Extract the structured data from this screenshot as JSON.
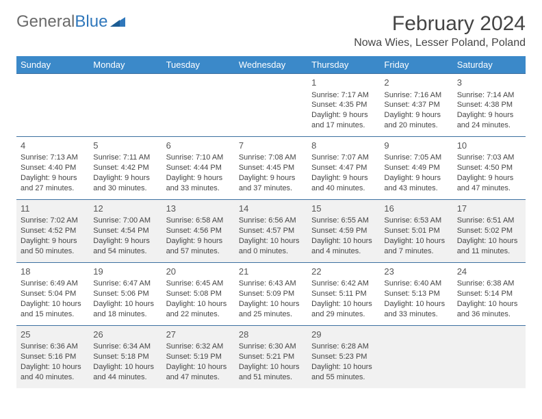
{
  "brand": {
    "part1": "General",
    "part2": "Blue"
  },
  "title": "February 2024",
  "location": "Nowa Wies, Lesser Poland, Poland",
  "colors": {
    "header_bg": "#3b89c9",
    "header_text": "#ffffff",
    "row_alt_bg": "#f1f1f1",
    "row_bg": "#ffffff",
    "border": "#3b6fa0",
    "text": "#444444",
    "logo_gray": "#6a6a6a",
    "logo_blue": "#2f77bb"
  },
  "day_headers": [
    "Sunday",
    "Monday",
    "Tuesday",
    "Wednesday",
    "Thursday",
    "Friday",
    "Saturday"
  ],
  "weeks": [
    [
      null,
      null,
      null,
      null,
      {
        "n": "1",
        "sr": "Sunrise: 7:17 AM",
        "ss": "Sunset: 4:35 PM",
        "dl": "Daylight: 9 hours and 17 minutes."
      },
      {
        "n": "2",
        "sr": "Sunrise: 7:16 AM",
        "ss": "Sunset: 4:37 PM",
        "dl": "Daylight: 9 hours and 20 minutes."
      },
      {
        "n": "3",
        "sr": "Sunrise: 7:14 AM",
        "ss": "Sunset: 4:38 PM",
        "dl": "Daylight: 9 hours and 24 minutes."
      }
    ],
    [
      {
        "n": "4",
        "sr": "Sunrise: 7:13 AM",
        "ss": "Sunset: 4:40 PM",
        "dl": "Daylight: 9 hours and 27 minutes."
      },
      {
        "n": "5",
        "sr": "Sunrise: 7:11 AM",
        "ss": "Sunset: 4:42 PM",
        "dl": "Daylight: 9 hours and 30 minutes."
      },
      {
        "n": "6",
        "sr": "Sunrise: 7:10 AM",
        "ss": "Sunset: 4:44 PM",
        "dl": "Daylight: 9 hours and 33 minutes."
      },
      {
        "n": "7",
        "sr": "Sunrise: 7:08 AM",
        "ss": "Sunset: 4:45 PM",
        "dl": "Daylight: 9 hours and 37 minutes."
      },
      {
        "n": "8",
        "sr": "Sunrise: 7:07 AM",
        "ss": "Sunset: 4:47 PM",
        "dl": "Daylight: 9 hours and 40 minutes."
      },
      {
        "n": "9",
        "sr": "Sunrise: 7:05 AM",
        "ss": "Sunset: 4:49 PM",
        "dl": "Daylight: 9 hours and 43 minutes."
      },
      {
        "n": "10",
        "sr": "Sunrise: 7:03 AM",
        "ss": "Sunset: 4:50 PM",
        "dl": "Daylight: 9 hours and 47 minutes."
      }
    ],
    [
      {
        "n": "11",
        "sr": "Sunrise: 7:02 AM",
        "ss": "Sunset: 4:52 PM",
        "dl": "Daylight: 9 hours and 50 minutes."
      },
      {
        "n": "12",
        "sr": "Sunrise: 7:00 AM",
        "ss": "Sunset: 4:54 PM",
        "dl": "Daylight: 9 hours and 54 minutes."
      },
      {
        "n": "13",
        "sr": "Sunrise: 6:58 AM",
        "ss": "Sunset: 4:56 PM",
        "dl": "Daylight: 9 hours and 57 minutes."
      },
      {
        "n": "14",
        "sr": "Sunrise: 6:56 AM",
        "ss": "Sunset: 4:57 PM",
        "dl": "Daylight: 10 hours and 0 minutes."
      },
      {
        "n": "15",
        "sr": "Sunrise: 6:55 AM",
        "ss": "Sunset: 4:59 PM",
        "dl": "Daylight: 10 hours and 4 minutes."
      },
      {
        "n": "16",
        "sr": "Sunrise: 6:53 AM",
        "ss": "Sunset: 5:01 PM",
        "dl": "Daylight: 10 hours and 7 minutes."
      },
      {
        "n": "17",
        "sr": "Sunrise: 6:51 AM",
        "ss": "Sunset: 5:02 PM",
        "dl": "Daylight: 10 hours and 11 minutes."
      }
    ],
    [
      {
        "n": "18",
        "sr": "Sunrise: 6:49 AM",
        "ss": "Sunset: 5:04 PM",
        "dl": "Daylight: 10 hours and 15 minutes."
      },
      {
        "n": "19",
        "sr": "Sunrise: 6:47 AM",
        "ss": "Sunset: 5:06 PM",
        "dl": "Daylight: 10 hours and 18 minutes."
      },
      {
        "n": "20",
        "sr": "Sunrise: 6:45 AM",
        "ss": "Sunset: 5:08 PM",
        "dl": "Daylight: 10 hours and 22 minutes."
      },
      {
        "n": "21",
        "sr": "Sunrise: 6:43 AM",
        "ss": "Sunset: 5:09 PM",
        "dl": "Daylight: 10 hours and 25 minutes."
      },
      {
        "n": "22",
        "sr": "Sunrise: 6:42 AM",
        "ss": "Sunset: 5:11 PM",
        "dl": "Daylight: 10 hours and 29 minutes."
      },
      {
        "n": "23",
        "sr": "Sunrise: 6:40 AM",
        "ss": "Sunset: 5:13 PM",
        "dl": "Daylight: 10 hours and 33 minutes."
      },
      {
        "n": "24",
        "sr": "Sunrise: 6:38 AM",
        "ss": "Sunset: 5:14 PM",
        "dl": "Daylight: 10 hours and 36 minutes."
      }
    ],
    [
      {
        "n": "25",
        "sr": "Sunrise: 6:36 AM",
        "ss": "Sunset: 5:16 PM",
        "dl": "Daylight: 10 hours and 40 minutes."
      },
      {
        "n": "26",
        "sr": "Sunrise: 6:34 AM",
        "ss": "Sunset: 5:18 PM",
        "dl": "Daylight: 10 hours and 44 minutes."
      },
      {
        "n": "27",
        "sr": "Sunrise: 6:32 AM",
        "ss": "Sunset: 5:19 PM",
        "dl": "Daylight: 10 hours and 47 minutes."
      },
      {
        "n": "28",
        "sr": "Sunrise: 6:30 AM",
        "ss": "Sunset: 5:21 PM",
        "dl": "Daylight: 10 hours and 51 minutes."
      },
      {
        "n": "29",
        "sr": "Sunrise: 6:28 AM",
        "ss": "Sunset: 5:23 PM",
        "dl": "Daylight: 10 hours and 55 minutes."
      },
      null,
      null
    ]
  ]
}
